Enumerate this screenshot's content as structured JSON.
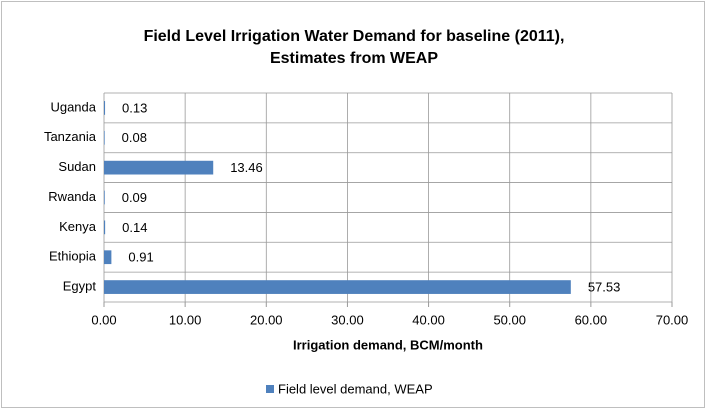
{
  "chart_data": {
    "type": "bar",
    "orientation": "horizontal",
    "title": [
      "Field Level Irrigation Water Demand for baseline (2011),",
      "Estimates from WEAP"
    ],
    "x_label": "Irrigation demand, BCM/month",
    "categories": [
      "Egypt",
      "Ethiopia",
      "Kenya",
      "Rwanda",
      "Sudan",
      "Tanzania",
      "Uganda"
    ],
    "series": [
      {
        "name": "Field level demand, WEAP",
        "color": "#4f81bd",
        "values": [
          57.53,
          0.91,
          0.14,
          0.09,
          13.46,
          0.08,
          0.13
        ]
      }
    ],
    "xlim": [
      0,
      70
    ],
    "xticks": [
      {
        "value": 0,
        "label": "0.00"
      },
      {
        "value": 10,
        "label": "10.00"
      },
      {
        "value": 20,
        "label": "20.00"
      },
      {
        "value": 30,
        "label": "30.00"
      },
      {
        "value": 40,
        "label": "40.00"
      },
      {
        "value": 50,
        "label": "50.00"
      },
      {
        "value": 60,
        "label": "60.00"
      },
      {
        "value": 70,
        "label": "70.00"
      }
    ],
    "grid": true,
    "legend": "bottom"
  }
}
